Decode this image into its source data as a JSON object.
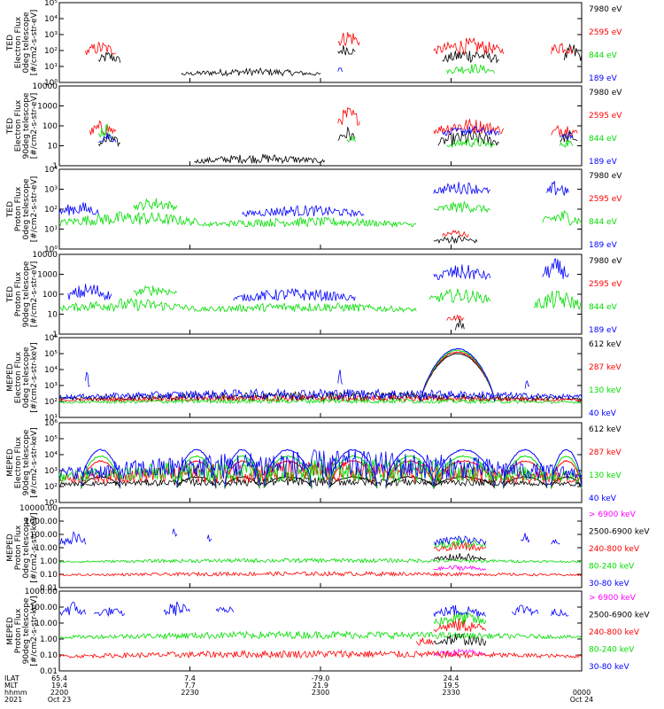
{
  "chart_data": {
    "type": "line",
    "x_range_minutes": [
      0,
      120
    ],
    "x_ticks": [
      {
        "t": 0,
        "ilat": "65.4",
        "mlt": "19.4",
        "hhmm": "2200",
        "date": "Oct 23"
      },
      {
        "t": 30,
        "ilat": "7.4",
        "mlt": "7.7",
        "hhmm": "2230",
        "date": ""
      },
      {
        "t": 60,
        "ilat": "-79.0",
        "mlt": "21.9",
        "hhmm": "2300",
        "date": ""
      },
      {
        "t": 90,
        "ilat": "24.4",
        "mlt": "19.5",
        "hhmm": "2330",
        "date": ""
      },
      {
        "t": 120,
        "ilat": "",
        "mlt": "",
        "hhmm": "0000",
        "date": "Oct 24"
      }
    ],
    "row_labels": [
      "ILAT",
      "MLT",
      "hhmm",
      "2021"
    ],
    "panels": [
      {
        "ylabel": [
          "TED",
          "Electron Flux",
          "0deg telescope",
          "[#/cm2-s-str-eV]"
        ],
        "yscale": "log",
        "ylim_exp": [
          0,
          5
        ],
        "ytick_labels": [
          "10⁰",
          "10¹",
          "10²",
          "10³",
          "10⁴",
          "10⁵"
        ],
        "series": [
          {
            "name": "7980 eV",
            "color": "#000000",
            "segments": [
              [
                9,
                14,
                1.0,
                2.0
              ],
              [
                28,
                60,
                0.3,
                0.9
              ],
              [
                64,
                68,
                1.5,
                2.5
              ],
              [
                88,
                101,
                1.0,
                2.2
              ],
              [
                116,
                120,
                1.0,
                2.5
              ]
            ]
          },
          {
            "name": "2595 eV",
            "color": "#ff0000",
            "segments": [
              [
                6,
                13,
                1.5,
                2.6
              ],
              [
                64,
                69,
                2.0,
                3.4
              ],
              [
                86,
                102,
                1.5,
                2.8
              ],
              [
                113,
                118,
                1.5,
                2.8
              ]
            ]
          },
          {
            "name": "844 eV",
            "color": "#00dd00",
            "segments": [
              [
                89,
                100,
                0.4,
                1.2
              ]
            ]
          },
          {
            "name": "189 eV",
            "color": "#0000ff",
            "segments": [
              [
                64,
                65,
                0.5,
                1.0
              ]
            ]
          }
        ]
      },
      {
        "ylabel": [
          "TED",
          "Electron Flux",
          "90deg telescope",
          "[#/cm2-s-str-eV]"
        ],
        "yscale": "log",
        "ylim_exp": [
          0,
          4
        ],
        "ytick_labels": [
          "1",
          "10",
          "100",
          "1000",
          "10000"
        ],
        "series": [
          {
            "name": "7980 eV",
            "color": "#000000",
            "segments": [
              [
                9,
                14,
                0.8,
                1.6
              ],
              [
                31,
                61,
                0.0,
                0.6
              ],
              [
                64,
                68,
                1.0,
                2.0
              ],
              [
                87,
                101,
                0.8,
                1.8
              ],
              [
                115,
                119,
                1.0,
                1.8
              ]
            ]
          },
          {
            "name": "2595 eV",
            "color": "#ff0000",
            "segments": [
              [
                7,
                13,
                1.3,
                2.3
              ],
              [
                64,
                69,
                1.8,
                3.0
              ],
              [
                86,
                102,
                1.4,
                2.4
              ],
              [
                113,
                119,
                1.3,
                2.2
              ]
            ]
          },
          {
            "name": "844 eV",
            "color": "#00dd00",
            "segments": [
              [
                9,
                12,
                1.2,
                2.2
              ],
              [
                66,
                68,
                1.0,
                1.6
              ],
              [
                89,
                100,
                0.8,
                1.4
              ],
              [
                115,
                118,
                0.8,
                1.4
              ]
            ]
          },
          {
            "name": "189 eV",
            "color": "#0000ff",
            "segments": [
              [
                9,
                13,
                1.0,
                1.8
              ],
              [
                88,
                101,
                1.4,
                2.0
              ],
              [
                115,
                118,
                1.2,
                1.8
              ]
            ]
          }
        ]
      },
      {
        "ylabel": [
          "TED",
          "Proton Flux",
          "0deg telescope",
          "[#/cm2-s-str-eV]"
        ],
        "yscale": "log",
        "ylim_exp": [
          0,
          4
        ],
        "ytick_labels": [
          "10⁰",
          "10¹",
          "10²",
          "10³",
          "10⁴"
        ],
        "series": [
          {
            "name": "7980 eV",
            "color": "#000000",
            "segments": [
              [
                86,
                96,
                0.2,
                0.7
              ]
            ]
          },
          {
            "name": "2595 eV",
            "color": "#ff0000",
            "segments": [
              [
                88,
                94,
                0.5,
                1.0
              ]
            ]
          },
          {
            "name": "844 eV",
            "color": "#00dd00",
            "segments": [
              [
                0,
                33,
                1.0,
                1.9
              ],
              [
                17,
                27,
                1.8,
                2.6
              ],
              [
                33,
                82,
                1.0,
                1.6
              ],
              [
                86,
                99,
                1.7,
                2.4
              ],
              [
                111,
                120,
                1.0,
                2.0
              ]
            ]
          },
          {
            "name": "189 eV",
            "color": "#0000ff",
            "segments": [
              [
                0,
                9,
                1.5,
                2.4
              ],
              [
                42,
                70,
                1.5,
                2.2
              ],
              [
                86,
                99,
                2.6,
                3.4
              ],
              [
                112,
                117,
                2.4,
                3.5
              ]
            ]
          }
        ]
      },
      {
        "ylabel": [
          "TED",
          "Proton Flux",
          "90deg telescope",
          "[#/cm2-s-str-eV]"
        ],
        "yscale": "log",
        "ylim_exp": [
          0,
          4
        ],
        "ytick_labels": [
          "1",
          "10",
          "100",
          "1000",
          "10000"
        ],
        "series": [
          {
            "name": "7980 eV",
            "color": "#000000",
            "segments": [
              [
                91,
                93,
                0.0,
                0.8
              ]
            ]
          },
          {
            "name": "2595 eV",
            "color": "#ff0000",
            "segments": [
              [
                89,
                93,
                0.6,
                1.0
              ]
            ]
          },
          {
            "name": "844 eV",
            "color": "#00dd00",
            "segments": [
              [
                0,
                31,
                1.0,
                1.8
              ],
              [
                17,
                27,
                1.8,
                2.5
              ],
              [
                31,
                82,
                1.0,
                1.6
              ],
              [
                85,
                99,
                1.4,
                2.3
              ],
              [
                109,
                120,
                1.0,
                2.2
              ]
            ]
          },
          {
            "name": "189 eV",
            "color": "#0000ff",
            "segments": [
              [
                2,
                12,
                1.5,
                2.6
              ],
              [
                40,
                68,
                1.5,
                2.3
              ],
              [
                86,
                99,
                2.5,
                3.5
              ],
              [
                111,
                117,
                2.5,
                3.8
              ]
            ]
          }
        ]
      },
      {
        "ylabel": [
          "MEPED",
          "Electron Flux",
          "0deg telescope",
          "[#/cm2-s-str-keV]"
        ],
        "yscale": "log",
        "ylim_exp": [
          1,
          6
        ],
        "ytick_labels": [
          "10¹",
          "10²",
          "10³",
          "10⁴",
          "10⁵",
          "10⁶"
        ],
        "series": [
          {
            "name": "612 keV",
            "color": "#000000",
            "segments": [
              [
                0,
                120,
                1.9,
                2.6
              ]
            ]
          },
          {
            "name": "287 keV",
            "color": "#ff0000",
            "segments": [
              [
                0,
                120,
                1.9,
                2.4
              ]
            ]
          },
          {
            "name": "130 keV",
            "color": "#00dd00",
            "segments": [
              [
                0,
                120,
                1.8,
                2.2
              ]
            ]
          },
          {
            "name": "40 keV",
            "color": "#0000ff",
            "segments": [
              [
                0,
                120,
                2.0,
                2.8
              ],
              [
                6,
                7,
                2.5,
                4.3
              ],
              [
                64,
                65,
                2.5,
                4.0
              ],
              [
                107,
                108,
                2.5,
                3.8
              ]
            ]
          }
        ],
        "peak": {
          "from": 83,
          "to": 100,
          "base_exp": 2.0,
          "top_exp": [
            5.0,
            5.1,
            5.2,
            5.3
          ]
        }
      },
      {
        "ylabel": [
          "MEPED",
          "Electron Flux",
          "90deg telescope",
          "[#/cm2-s-str-keV]"
        ],
        "yscale": "log",
        "ylim_exp": [
          1,
          6
        ],
        "ytick_labels": [
          "10¹",
          "10²",
          "10³",
          "10⁴",
          "10⁵",
          "10⁶"
        ],
        "series": [
          {
            "name": "612 keV",
            "color": "#000000",
            "segments": [
              [
                0,
                120,
                1.9,
                2.6
              ]
            ]
          },
          {
            "name": "287 keV",
            "color": "#ff0000",
            "segments": [
              [
                0,
                120,
                1.9,
                3.6
              ]
            ]
          },
          {
            "name": "130 keV",
            "color": "#00dd00",
            "segments": [
              [
                0,
                120,
                1.9,
                3.9
              ]
            ]
          },
          {
            "name": "40 keV",
            "color": "#0000ff",
            "segments": [
              [
                0,
                120,
                2.0,
                4.3
              ]
            ]
          }
        ],
        "humps": [
          [
            5,
            14
          ],
          [
            27,
            36
          ],
          [
            38,
            46
          ],
          [
            47,
            58
          ],
          [
            62,
            73
          ],
          [
            75,
            86
          ],
          [
            86,
            100
          ],
          [
            102,
            112
          ],
          [
            113,
            120
          ]
        ]
      },
      {
        "ylabel": [
          "MEPED",
          "Proton Flux",
          "0deg telescope",
          "[#/cm2-s-str-keV]"
        ],
        "yscale": "log",
        "ylim_exp": [
          -2,
          4
        ],
        "ytick_labels": [
          "0.01",
          "0.10",
          "1.00",
          "10.00",
          "100.00",
          "1000.00",
          "10000.00"
        ],
        "series": [
          {
            "name": "> 6900 keV",
            "color": "#ff00ff",
            "segments": [
              [
                86,
                98,
                -0.8,
                -0.3
              ]
            ]
          },
          {
            "name": "2500-6900 keV",
            "color": "#000000",
            "segments": [
              [
                86,
                98,
                -0.2,
                0.6
              ]
            ]
          },
          {
            "name": "240-800 keV",
            "color": "#ff0000",
            "segments": [
              [
                0,
                120,
                -1.2,
                -0.8
              ],
              [
                86,
                98,
                0.5,
                1.5
              ]
            ]
          },
          {
            "name": "80-240 keV",
            "color": "#00dd00",
            "segments": [
              [
                0,
                120,
                -0.2,
                0.2
              ],
              [
                86,
                98,
                0.8,
                1.8
              ]
            ]
          },
          {
            "name": "30-80 keV",
            "color": "#0000ff",
            "segments": [
              [
                0,
                6,
                1.0,
                2.2
              ],
              [
                26,
                27,
                1.5,
                2.6
              ],
              [
                34,
                35,
                1.3,
                2.1
              ],
              [
                86,
                98,
                1.0,
                2.0
              ],
              [
                106,
                108,
                1.2,
                2.2
              ],
              [
                113,
                115,
                1.0,
                1.8
              ]
            ]
          }
        ]
      },
      {
        "ylabel": [
          "MEPED",
          "Proton Flux",
          "90deg telescope",
          "[#/cm2-s-str-keV]"
        ],
        "yscale": "log",
        "ylim_exp": [
          -2,
          3
        ],
        "ytick_labels": [
          "0.01",
          "0.10",
          "1.00",
          "10.00",
          "100.00",
          "1000.00"
        ],
        "series": [
          {
            "name": "> 6900 keV",
            "color": "#ff00ff",
            "segments": [
              [
                86,
                98,
                -1.2,
                -0.6
              ]
            ]
          },
          {
            "name": "2500-6900 keV",
            "color": "#000000",
            "segments": [
              [
                86,
                98,
                -0.6,
                0.4
              ]
            ]
          },
          {
            "name": "240-800 keV",
            "color": "#ff0000",
            "segments": [
              [
                0,
                120,
                -1.3,
                -0.7
              ],
              [
                82,
                86,
                -0.6,
                0.3
              ],
              [
                86,
                98,
                0.2,
                1.3
              ]
            ]
          },
          {
            "name": "80-240 keV",
            "color": "#00dd00",
            "segments": [
              [
                0,
                120,
                -0.1,
                0.5
              ],
              [
                86,
                98,
                0.6,
                1.8
              ]
            ]
          },
          {
            "name": "30-80 keV",
            "color": "#0000ff",
            "segments": [
              [
                0,
                6,
                1.2,
                2.4
              ],
              [
                8,
                15,
                1.3,
                2.0
              ],
              [
                24,
                30,
                1.2,
                2.4
              ],
              [
                36,
                40,
                1.5,
                2.3
              ],
              [
                86,
                98,
                1.2,
                2.2
              ],
              [
                104,
                110,
                1.3,
                2.3
              ],
              [
                113,
                117,
                1.2,
                2.1
              ]
            ]
          }
        ]
      }
    ]
  }
}
